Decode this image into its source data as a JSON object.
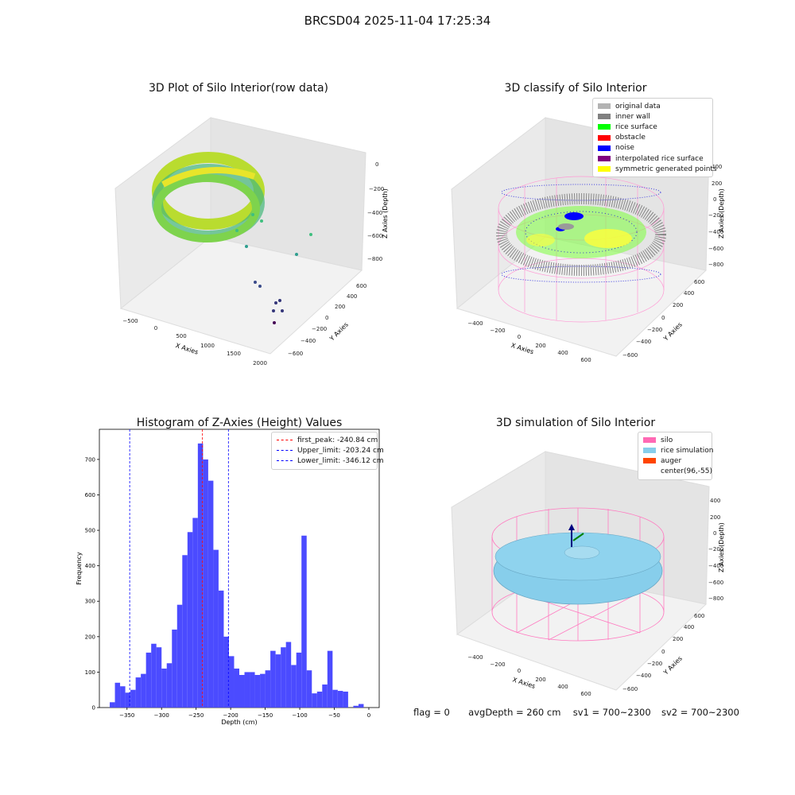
{
  "suptitle": "BRCSD04 2025-11-04 17:25:34",
  "panels": {
    "raw": {
      "title": "3D Plot of Silo Interior(row data)",
      "xlabel": "X Axies",
      "ylabel": "Y Axies",
      "zlabel": "Z Axies (Depth)",
      "xticks": [
        "−500",
        "0",
        "500",
        "1000",
        "1500",
        "2000"
      ],
      "yticks": [
        "600",
        "400",
        "200",
        "0",
        "−200",
        "−400",
        "−600"
      ],
      "zticks": [
        "0",
        "−200",
        "−400",
        "−600",
        "−800"
      ]
    },
    "classify": {
      "title": "3D classify of Silo Interior",
      "xlabel": "X Axies",
      "ylabel": "Y Axies",
      "zlabel": "Z Axies (Depth)",
      "xticks": [
        "−400",
        "−200",
        "0",
        "200",
        "400",
        "600"
      ],
      "yticks": [
        "600",
        "400",
        "200",
        "0",
        "−200",
        "−400",
        "−600"
      ],
      "zticks": [
        "400",
        "200",
        "0",
        "−200",
        "−400",
        "−600",
        "−800"
      ],
      "legend": [
        {
          "label": "original data",
          "color": "#b3b3b3"
        },
        {
          "label": "inner wall",
          "color": "#808080"
        },
        {
          "label": "rice surface",
          "color": "#00ff00"
        },
        {
          "label": "obstacle",
          "color": "#ff0000"
        },
        {
          "label": "noise",
          "color": "#0000ff"
        },
        {
          "label": "interpolated rice surface",
          "color": "#800080"
        },
        {
          "label": "symmetric generated points",
          "color": "#ffff00"
        }
      ]
    },
    "simulation": {
      "title": "3D simulation of Silo Interior",
      "xlabel": "X Axies",
      "ylabel": "Y Axies",
      "zlabel": "Z Axies (Depth)",
      "xticks": [
        "−400",
        "−200",
        "0",
        "200",
        "400",
        "600"
      ],
      "yticks": [
        "600",
        "400",
        "200",
        "0",
        "−200",
        "−400",
        "−600"
      ],
      "zticks": [
        "400",
        "200",
        "0",
        "−200",
        "−400",
        "−600",
        "−800"
      ],
      "legend": [
        {
          "label": "silo",
          "color": "#ff69b4"
        },
        {
          "label": "rice simulation",
          "color": "#87ceeb"
        },
        {
          "label": "auger",
          "color": "#ff4500"
        },
        {
          "label": "center(96,-55)",
          "color": "#ffffff"
        }
      ]
    }
  },
  "footer": {
    "flag": "flag = 0",
    "avg_depth": "avgDepth = 260 cm",
    "sv1": "sv1 = 700~2300",
    "sv2": "sv2 = 700~2300"
  },
  "chart_data": [
    {
      "type": "bar",
      "title": "Histogram of Z-Axies (Height) Values",
      "xlabel": "Depth (cm)",
      "ylabel": "Frequency",
      "xlim": [
        -390,
        15
      ],
      "ylim": [
        0,
        785
      ],
      "xticks": [
        -350,
        -300,
        -250,
        -200,
        -150,
        -100,
        -50,
        0
      ],
      "xtick_labels": [
        "−350",
        "−300",
        "−250",
        "−200",
        "−150",
        "−100",
        "−50",
        "0"
      ],
      "yticks": [
        0,
        100,
        200,
        300,
        400,
        500,
        600,
        700
      ],
      "bin_start": -375,
      "bin_width": 7.5,
      "values": [
        15,
        70,
        60,
        42,
        50,
        85,
        95,
        155,
        180,
        170,
        110,
        125,
        220,
        290,
        430,
        495,
        535,
        745,
        700,
        640,
        445,
        330,
        200,
        145,
        110,
        92,
        100,
        100,
        92,
        95,
        105,
        160,
        150,
        170,
        185,
        120,
        155,
        485,
        105,
        40,
        45,
        65,
        160,
        50,
        47,
        45,
        0,
        5,
        10
      ],
      "bar_color": "#4b4bff",
      "vlines": [
        {
          "label": "first_peak: -240.84 cm",
          "x": -240.84,
          "color": "#ff0000"
        },
        {
          "label": "Upper_limit: -203.24 cm",
          "x": -203.24,
          "color": "#0000ff"
        },
        {
          "label": "Lower_limit: -346.12 cm",
          "x": -346.12,
          "color": "#0000ff"
        }
      ],
      "legend": "top-right"
    }
  ]
}
